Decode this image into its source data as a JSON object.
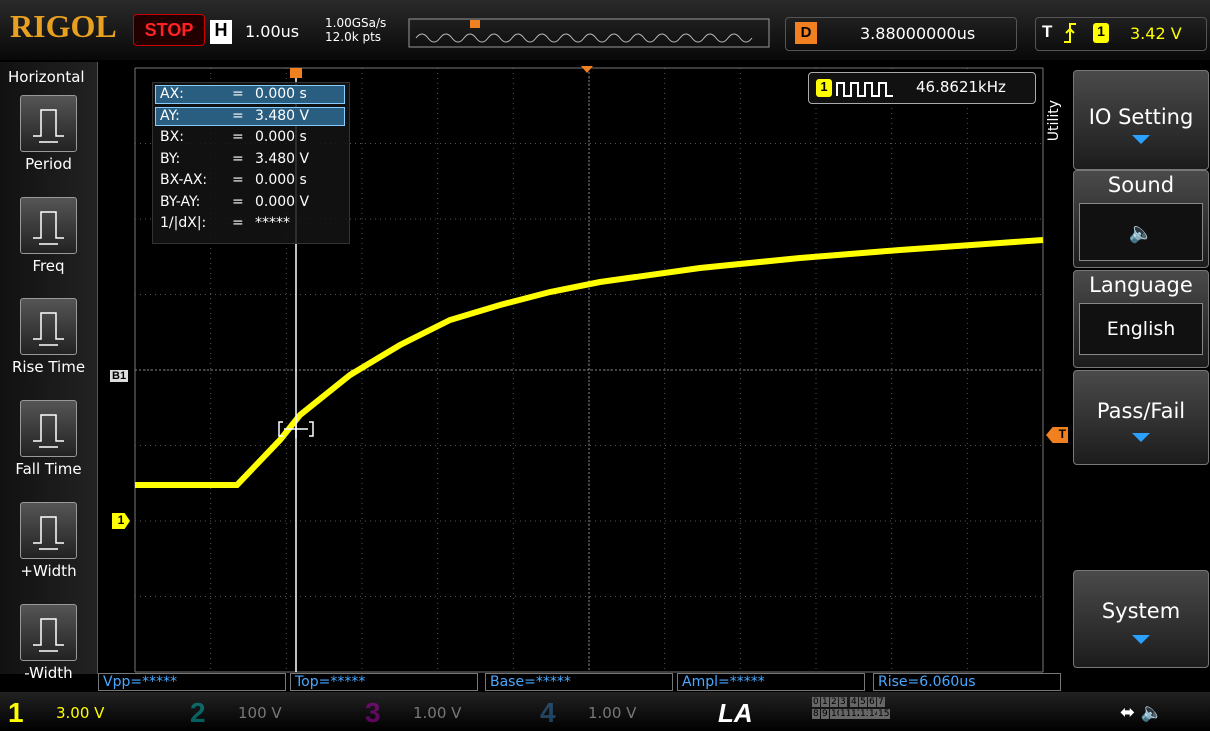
{
  "header": {
    "brand": "RIGOL",
    "status": "STOP",
    "h_label": "H",
    "timebase": "1.00us",
    "sample_rate": "1.00GSa/s",
    "points": "12.0k pts",
    "delay_label": "D",
    "delay": "3.88000000us",
    "trigger_label": "T",
    "trigger_channel": "1",
    "trigger_level": "3.42 V"
  },
  "left_menu": {
    "title": "Horizontal",
    "items": [
      "Period",
      "Freq",
      "Rise Time",
      "Fall Time",
      "+Width",
      "-Width"
    ]
  },
  "cursor_panel": {
    "rows": [
      [
        "AX:",
        "=",
        "0.000 s"
      ],
      [
        "AY:",
        "=",
        "3.480 V"
      ],
      [
        "BX:",
        "=",
        "0.000 s"
      ],
      [
        "BY:",
        "=",
        "3.480 V"
      ],
      [
        "BX-AX:",
        "=",
        "0.000 s"
      ],
      [
        "BY-AY:",
        "=",
        "0.000 V"
      ],
      [
        "1/|dX|:",
        "=",
        "*****"
      ]
    ]
  },
  "counter": {
    "channel": "1",
    "frequency": "46.8621kHz"
  },
  "markers": {
    "cursor_b": "B1",
    "channel": "1",
    "trigger": "T"
  },
  "right_menu": {
    "title": "Utility",
    "io": "IO Setting",
    "sound": "Sound",
    "language_title": "Language",
    "language": "English",
    "pass_fail": "Pass/Fail",
    "system": "System"
  },
  "measurements": [
    "Vpp=*****",
    "Top=*****",
    "Base=*****",
    "Ampl=*****",
    "Rise=6.060us"
  ],
  "footer": {
    "channels": [
      {
        "num": "1",
        "scale": "3.00 V"
      },
      {
        "num": "2",
        "scale": "100 V"
      },
      {
        "num": "3",
        "scale": "1.00 V"
      },
      {
        "num": "4",
        "scale": "1.00 V"
      }
    ],
    "la": "LA",
    "la_bits": [
      "0",
      "1",
      "2",
      "3",
      "4",
      "5",
      "6",
      "7",
      "8",
      "9",
      "10",
      "11",
      "12",
      "13",
      "14",
      "15"
    ]
  }
}
